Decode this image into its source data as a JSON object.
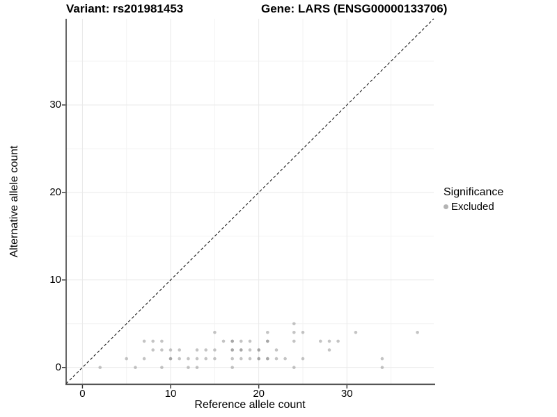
{
  "titles": {
    "variant": "Variant: rs201981453",
    "gene": "Gene: LARS (ENSG00000133706)"
  },
  "legend": {
    "title": "Significance",
    "items": [
      {
        "label": "Excluded",
        "color": "#b3b3b3"
      }
    ]
  },
  "style": {
    "point_color": "#8a8a8a",
    "point_opacity": 0.5,
    "major_grid_color": "#e9e9e9",
    "minor_grid_color": "#f3f3f3",
    "axis_line_color": "#333333",
    "baseline_color": "#555555",
    "identity_line_color": "#1a1a1a"
  },
  "chart_data": {
    "type": "scatter",
    "title": "Variant: rs201981453 | Gene: LARS (ENSG00000133706)",
    "xlabel": "Reference allele count",
    "ylabel": "Alternative allele count",
    "x_ticks": [
      0,
      10,
      20,
      30
    ],
    "y_ticks": [
      0,
      10,
      20,
      30
    ],
    "xlim": [
      -1.85,
      39.85
    ],
    "ylim": [
      -1.85,
      39.85
    ],
    "grid": {
      "major": [
        0,
        10,
        20,
        30
      ],
      "minor": [
        5,
        15,
        25,
        35
      ]
    },
    "identity_line": true,
    "legend_position": "right",
    "series": [
      {
        "name": "Excluded",
        "points": [
          [
            2,
            0
          ],
          [
            6,
            0
          ],
          [
            9,
            0
          ],
          [
            12,
            0
          ],
          [
            13,
            0
          ],
          [
            17,
            0
          ],
          [
            24,
            0
          ],
          [
            34,
            0
          ],
          [
            5,
            1
          ],
          [
            7,
            1
          ],
          [
            10,
            1,
            2
          ],
          [
            11,
            1
          ],
          [
            12,
            1
          ],
          [
            13,
            1
          ],
          [
            14,
            1
          ],
          [
            15,
            1
          ],
          [
            17,
            1
          ],
          [
            18,
            1
          ],
          [
            19,
            1
          ],
          [
            20,
            1,
            2
          ],
          [
            21,
            1,
            2
          ],
          [
            22,
            1
          ],
          [
            23,
            1
          ],
          [
            25,
            1
          ],
          [
            34,
            1
          ],
          [
            8,
            2
          ],
          [
            9,
            2
          ],
          [
            10,
            2
          ],
          [
            11,
            2
          ],
          [
            13,
            2
          ],
          [
            14,
            2
          ],
          [
            15,
            2
          ],
          [
            17,
            2,
            2
          ],
          [
            18,
            2,
            2
          ],
          [
            19,
            2
          ],
          [
            20,
            2,
            2
          ],
          [
            22,
            2
          ],
          [
            28,
            2
          ],
          [
            7,
            3
          ],
          [
            8,
            3
          ],
          [
            9,
            3
          ],
          [
            16,
            3
          ],
          [
            17,
            3,
            2
          ],
          [
            18,
            3
          ],
          [
            19,
            3
          ],
          [
            21,
            3,
            2
          ],
          [
            24,
            3
          ],
          [
            27,
            3
          ],
          [
            28,
            3
          ],
          [
            29,
            3
          ],
          [
            15,
            4
          ],
          [
            21,
            4
          ],
          [
            24,
            4
          ],
          [
            25,
            4
          ],
          [
            31,
            4
          ],
          [
            38,
            4
          ],
          [
            24,
            5
          ]
        ]
      }
    ]
  }
}
